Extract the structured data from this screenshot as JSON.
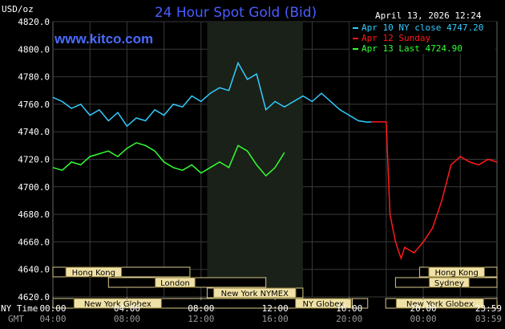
{
  "chart_data": {
    "type": "line",
    "title": "24 Hour Spot Gold (Bid)",
    "watermark": "www.kitco.com",
    "timestamp": "April 13, 2026 12:24",
    "ylabel": "USD/oz",
    "ylim": [
      4620,
      4820
    ],
    "y_ticks": [
      "4620.0",
      "4640.0",
      "4660.0",
      "4680.0",
      "4700.0",
      "4720.0",
      "4740.0",
      "4760.0",
      "4780.0",
      "4800.0",
      "4820.0"
    ],
    "x_axis_label_ny": "NY Time",
    "x_axis_label_gmt": "GMT",
    "x_ticks_ny": [
      "00:00",
      "04:00",
      "08:00",
      "12:00",
      "16:00",
      "20:00",
      "23:59"
    ],
    "x_ticks_gmt": [
      "04:00",
      "08:00",
      "12:00",
      "16:00",
      "20:00",
      "00:00",
      "03:59"
    ],
    "x_tick_hours": [
      0,
      4,
      8,
      12,
      16,
      20,
      23.98
    ],
    "xlim": [
      0,
      23.98
    ],
    "shaded_session_hours": [
      8.33,
      13.5
    ],
    "grid": true,
    "legend_position": "top-right",
    "series": [
      {
        "name": "Apr 10 NY close 4747.20",
        "color": "#33ccff",
        "x": [
          0,
          0.5,
          1,
          1.5,
          2,
          2.5,
          3,
          3.5,
          4,
          4.5,
          5,
          5.5,
          6,
          6.5,
          7,
          7.5,
          8,
          8.5,
          9,
          9.5,
          10,
          10.5,
          11,
          11.5,
          12,
          12.5,
          13,
          13.5,
          14,
          14.5,
          15,
          15.5,
          16,
          16.5,
          17,
          17.2
        ],
        "y": [
          4765,
          4762,
          4757,
          4760,
          4752,
          4756,
          4748,
          4754,
          4744,
          4750,
          4748,
          4756,
          4752,
          4760,
          4758,
          4766,
          4762,
          4768,
          4772,
          4770,
          4790,
          4778,
          4782,
          4756,
          4762,
          4758,
          4762,
          4766,
          4762,
          4768,
          4762,
          4756,
          4752,
          4748,
          4747,
          4747.2
        ]
      },
      {
        "name": "Apr 12 Sunday",
        "color": "#ff1a1a",
        "x": [
          17.2,
          17.5,
          18,
          18.2,
          18.5,
          18.8,
          19,
          19.5,
          20,
          20.5,
          21,
          21.5,
          22,
          22.5,
          23,
          23.5,
          23.98
        ],
        "y": [
          4747.2,
          4747.2,
          4747.2,
          4680,
          4660,
          4648,
          4656,
          4652,
          4660,
          4670,
          4690,
          4716,
          4722,
          4718,
          4716,
          4720,
          4718
        ]
      },
      {
        "name": "Apr 13 Last 4724.90",
        "color": "#33ff33",
        "x": [
          0,
          0.5,
          1,
          1.5,
          2,
          2.5,
          3,
          3.5,
          4,
          4.5,
          5,
          5.5,
          6,
          6.5,
          7,
          7.5,
          8,
          8.5,
          9,
          9.5,
          10,
          10.5,
          11,
          11.5,
          12,
          12.5
        ],
        "y": [
          4714,
          4712,
          4718,
          4716,
          4722,
          4724,
          4726,
          4722,
          4728,
          4732,
          4730,
          4726,
          4718,
          4714,
          4712,
          4716,
          4710,
          4714,
          4718,
          4714,
          4730,
          4726,
          4716,
          4708,
          4714,
          4724.9
        ]
      }
    ],
    "market_rows": [
      {
        "name": "Hong Kong",
        "segments": [
          [
            0,
            7.4
          ],
          [
            19.8,
            23.98
          ]
        ]
      },
      {
        "name": "London",
        "segments": [
          [
            3,
            11.5
          ],
          [
            18.5,
            23.98
          ]
        ]
      },
      {
        "name": "New York NYMEX",
        "segments": [
          [
            8.33,
            13.5
          ]
        ]
      },
      {
        "name": "New York Globex",
        "segments": [
          [
            0,
            16.17
          ],
          [
            16.17,
            17
          ],
          [
            17.97,
            23.98
          ]
        ]
      }
    ],
    "market_labels": [
      {
        "text": "Hong Kong",
        "row": 0,
        "hour": 2.2
      },
      {
        "text": "Hong Kong",
        "row": 0,
        "hour": 21.8
      },
      {
        "text": "London",
        "row": 1,
        "hour": 6.6
      },
      {
        "text": "Sydney",
        "row": 1,
        "hour": 21.4
      },
      {
        "text": "New York NYMEX",
        "row": 2,
        "hour": 10.9
      },
      {
        "text": "New York Globex",
        "row": 3,
        "hour": 3.5
      },
      {
        "text": "NY Globex",
        "row": 3,
        "hour": 14.6
      },
      {
        "text": "New York Globex",
        "row": 3,
        "hour": 20.9
      }
    ]
  }
}
